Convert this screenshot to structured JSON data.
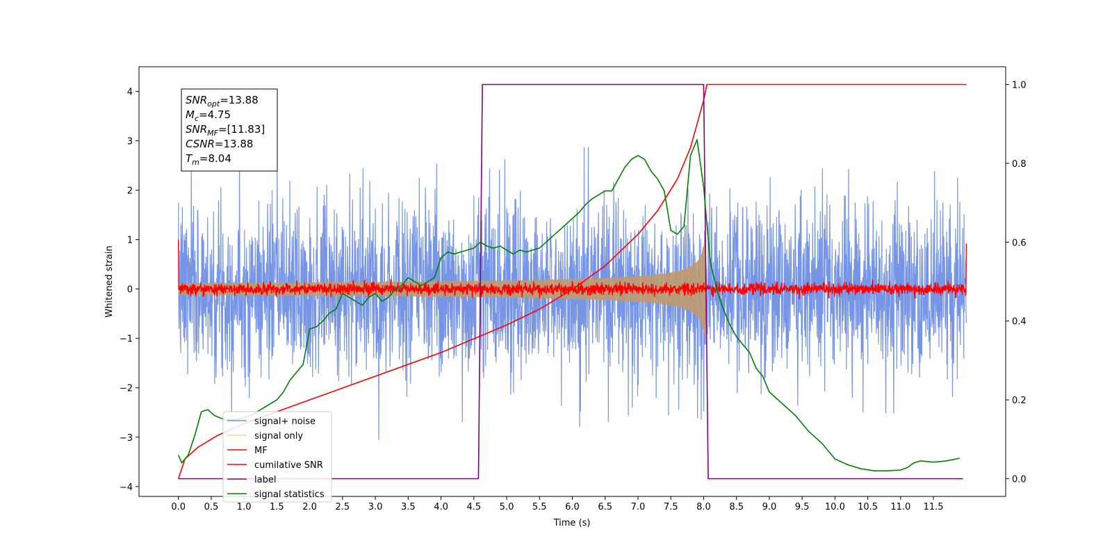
{
  "chart_data": {
    "type": "line",
    "xlabel": "Time (s)",
    "ylabel": "Whitened strain",
    "xlim": [
      -0.6,
      12.6
    ],
    "ylim": [
      -4.2,
      4.5
    ],
    "ylim_right": [
      -0.045,
      1.045
    ],
    "x_ticks": [
      "0.0",
      "0.5",
      "1.0",
      "1.5",
      "2.0",
      "2.5",
      "3.0",
      "3.5",
      "4.0",
      "4.5",
      "5.0",
      "5.5",
      "6.0",
      "6.5",
      "7.0",
      "7.5",
      "8.0",
      "8.5",
      "9.0",
      "9.5",
      "10.0",
      "10.5",
      "11.0",
      "11.5"
    ],
    "y_ticks_left": [
      "−4",
      "−3",
      "−2",
      "−1",
      "0",
      "1",
      "2",
      "3",
      "4"
    ],
    "y_ticks_right": [
      "0.0",
      "0.2",
      "0.4",
      "0.6",
      "0.8",
      "1.0"
    ],
    "legend_position": "lower-left",
    "annotation": {
      "lines": [
        {
          "main": "SNR",
          "sub": "opt",
          "value": "=13.88"
        },
        {
          "main": "M",
          "sub": "c",
          "value": "=4.75"
        },
        {
          "main": "SNR",
          "sub": "MF",
          "value": "=[11.83]"
        },
        {
          "main": "CSNR",
          "sub": "",
          "value": "=13.88"
        },
        {
          "main": "T",
          "sub": "m",
          "value": "=8.04"
        }
      ]
    },
    "series": [
      {
        "name": "signal+ noise",
        "color": "#6f8fe6",
        "axis": "left",
        "style": "noise band",
        "noise_sigma": 0.85,
        "x_range": [
          0.0,
          12.0
        ]
      },
      {
        "name": "signal only",
        "color": "#f5c66d",
        "axis": "left",
        "style": "chirp",
        "rendered_color": "#c09a6e",
        "x_range": [
          0.0,
          8.04
        ]
      },
      {
        "name": "MF",
        "color": "#ff0000",
        "axis": "left",
        "style": "noise",
        "noise_sigma": 0.06,
        "x_range": [
          0.0,
          12.0
        ]
      },
      {
        "name": "cumilative SNR",
        "color": "#ff0000",
        "axis": "right",
        "x": [
          0.0,
          0.1,
          0.3,
          0.6,
          1.0,
          1.5,
          2.0,
          2.5,
          3.0,
          3.5,
          4.0,
          4.5,
          5.0,
          5.5,
          6.0,
          6.5,
          7.0,
          7.3,
          7.6,
          7.8,
          7.9,
          8.0,
          8.05,
          12.0
        ],
        "y": [
          0.0,
          0.05,
          0.08,
          0.11,
          0.14,
          0.17,
          0.2,
          0.23,
          0.26,
          0.29,
          0.32,
          0.355,
          0.39,
          0.43,
          0.48,
          0.54,
          0.62,
          0.68,
          0.76,
          0.84,
          0.9,
          0.96,
          1.0,
          1.0
        ]
      },
      {
        "name": "label",
        "color": "#800080",
        "axis": "right",
        "x": [
          0.0,
          4.57,
          4.63,
          8.0,
          8.07,
          11.95
        ],
        "y": [
          0.0,
          0.0,
          1.0,
          1.0,
          0.0,
          0.0
        ]
      },
      {
        "name": "signal statistics",
        "color": "#008000",
        "axis": "right",
        "x": [
          0.0,
          0.05,
          0.15,
          0.25,
          0.35,
          0.45,
          0.55,
          0.7,
          0.85,
          1.0,
          1.1,
          1.2,
          1.3,
          1.4,
          1.5,
          1.6,
          1.7,
          1.8,
          1.9,
          2.0,
          2.1,
          2.2,
          2.3,
          2.4,
          2.5,
          2.6,
          2.7,
          2.8,
          2.9,
          3.0,
          3.1,
          3.2,
          3.3,
          3.4,
          3.5,
          3.6,
          3.7,
          3.8,
          3.9,
          4.0,
          4.1,
          4.2,
          4.3,
          4.4,
          4.5,
          4.6,
          4.7,
          4.8,
          4.9,
          5.0,
          5.1,
          5.2,
          5.3,
          5.4,
          5.5,
          5.6,
          5.7,
          5.8,
          5.9,
          6.0,
          6.1,
          6.2,
          6.3,
          6.4,
          6.5,
          6.6,
          6.7,
          6.8,
          6.9,
          7.0,
          7.1,
          7.2,
          7.3,
          7.4,
          7.5,
          7.6,
          7.7,
          7.8,
          7.9,
          8.0,
          8.1,
          8.2,
          8.3,
          8.4,
          8.5,
          8.6,
          8.7,
          8.8,
          8.9,
          9.0,
          9.2,
          9.4,
          9.6,
          9.8,
          10.0,
          10.2,
          10.4,
          10.6,
          10.8,
          11.0,
          11.1,
          11.2,
          11.3,
          11.5,
          11.7,
          11.9
        ],
        "y": [
          0.06,
          0.04,
          0.06,
          0.11,
          0.17,
          0.175,
          0.16,
          0.15,
          0.15,
          0.155,
          0.16,
          0.17,
          0.18,
          0.19,
          0.2,
          0.22,
          0.25,
          0.27,
          0.29,
          0.38,
          0.385,
          0.4,
          0.42,
          0.43,
          0.47,
          0.46,
          0.45,
          0.44,
          0.46,
          0.47,
          0.45,
          0.46,
          0.48,
          0.49,
          0.51,
          0.5,
          0.49,
          0.5,
          0.51,
          0.56,
          0.575,
          0.57,
          0.575,
          0.58,
          0.585,
          0.6,
          0.59,
          0.585,
          0.59,
          0.58,
          0.57,
          0.58,
          0.575,
          0.58,
          0.585,
          0.6,
          0.615,
          0.63,
          0.645,
          0.66,
          0.675,
          0.695,
          0.71,
          0.72,
          0.73,
          0.73,
          0.76,
          0.79,
          0.81,
          0.82,
          0.81,
          0.78,
          0.76,
          0.73,
          0.63,
          0.62,
          0.64,
          0.82,
          0.86,
          0.74,
          0.55,
          0.48,
          0.43,
          0.39,
          0.36,
          0.34,
          0.32,
          0.28,
          0.26,
          0.22,
          0.19,
          0.16,
          0.12,
          0.09,
          0.05,
          0.035,
          0.025,
          0.02,
          0.02,
          0.022,
          0.028,
          0.04,
          0.045,
          0.042,
          0.045,
          0.052
        ]
      }
    ]
  }
}
